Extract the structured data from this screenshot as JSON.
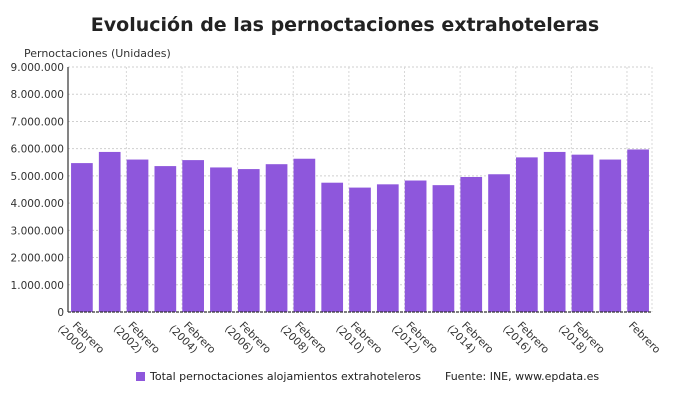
{
  "chart_data": {
    "type": "bar",
    "title": "Evolución de las pernoctaciones extrahoteleras",
    "ylabel": "Pernoctaciones (Unidades)",
    "xlabel": "",
    "ylim": [
      0,
      9000000
    ],
    "yticks": [
      0,
      1000000,
      2000000,
      3000000,
      4000000,
      5000000,
      6000000,
      7000000,
      8000000,
      9000000
    ],
    "ytick_labels": [
      "0",
      "1.000.000",
      "2.000.000",
      "3.000.000",
      "4.000.000",
      "5.000.000",
      "6.000.000",
      "7.000.000",
      "8.000.000",
      "9.000.000"
    ],
    "categories": [
      "Febrero (2000)",
      "",
      "Febrero (2002)",
      "",
      "Febrero (2004)",
      "",
      "Febrero (2006)",
      "",
      "Febrero (2008)",
      "",
      "Febrero (2010)",
      "",
      "Febrero (2012)",
      "",
      "Febrero (2014)",
      "",
      "Febrero (2016)",
      "",
      "Febrero (2018)",
      "",
      "Febrero"
    ],
    "series": [
      {
        "name": "Total pernoctaciones alojamientos extrahoteleros",
        "color": "#8e57dc",
        "values": [
          5470000,
          5880000,
          5600000,
          5360000,
          5580000,
          5310000,
          5250000,
          5430000,
          5630000,
          4750000,
          4570000,
          4690000,
          4830000,
          4660000,
          4960000,
          5060000,
          5680000,
          5880000,
          5780000,
          5600000,
          5970000
        ]
      }
    ],
    "grid": true,
    "legend": "bottom",
    "source": "Fuente: INE, www.epdata.es"
  }
}
